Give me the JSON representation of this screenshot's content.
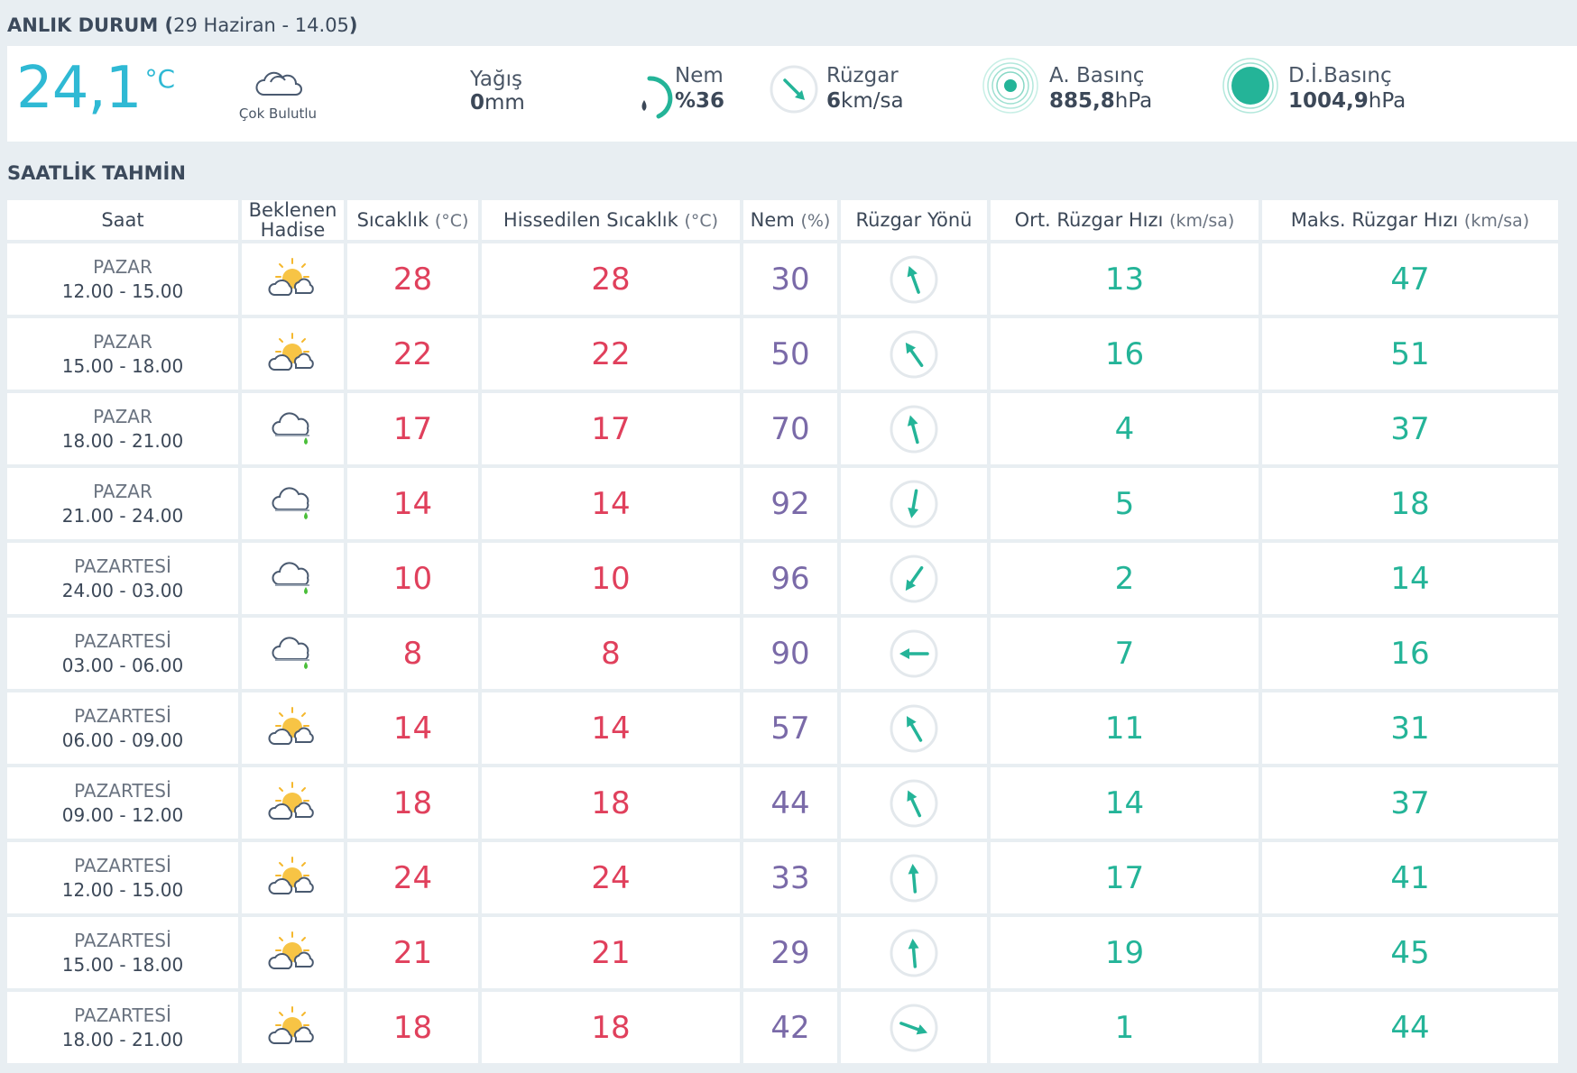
{
  "current": {
    "title_bold": "ANLIK DURUM",
    "title_open": " (",
    "title_date": "29 Haziran - 14.05",
    "title_close": ")",
    "temperature": "24,1",
    "temp_unit": "°C",
    "condition": "Çok Bulutlu",
    "condition_icon": "cloud-icon",
    "rain_label": "Yağış",
    "rain_value": "0",
    "rain_unit": "mm",
    "humidity_label": "Nem",
    "humidity_value": "%36",
    "humidity_level": 0.36,
    "wind_label": "Rüzgar",
    "wind_value": "6",
    "wind_unit": "km/sa",
    "apressure_label": "A. Basınç",
    "apressure_value": "885,8",
    "apressure_unit": "hPa",
    "dpressure_label": "D.İ.Basınç",
    "dpressure_value": "1004,9",
    "dpressure_unit": "hPa",
    "colors": {
      "accent": "#2fb9d4",
      "wind": "#24b498"
    }
  },
  "hourly": {
    "title": "SAATLİK TAHMİN",
    "headers": {
      "saat": "Saat",
      "hadise_1": "Beklenen",
      "hadise_2": "Hadise",
      "sicaklik": "Sıcaklık",
      "sicaklik_unit": "(°C)",
      "hissedilen": "Hissedilen Sıcaklık",
      "hissedilen_unit": "(°C)",
      "nem": "Nem",
      "nem_unit": "(%)",
      "ruzgar_yonu": "Rüzgar Yönü",
      "ort_ruzgar": "Ort. Rüzgar Hızı",
      "ort_ruzgar_unit": "(km/sa)",
      "maks_ruzgar": "Maks. Rüzgar Hızı",
      "maks_ruzgar_unit": "(km/sa)"
    },
    "rows": [
      {
        "day": "PAZAR",
        "time": "12.00 - 15.00",
        "icon": "partly-cloudy-icon",
        "temp": "28",
        "feels": "28",
        "hum": "30",
        "dir": 160,
        "avg": "13",
        "max": "47"
      },
      {
        "day": "PAZAR",
        "time": "15.00 - 18.00",
        "icon": "partly-cloudy-icon",
        "temp": "22",
        "feels": "22",
        "hum": "50",
        "dir": 145,
        "avg": "16",
        "max": "51"
      },
      {
        "day": "PAZAR",
        "time": "18.00 - 21.00",
        "icon": "cloud-rain-icon",
        "temp": "17",
        "feels": "17",
        "hum": "70",
        "dir": 165,
        "avg": "4",
        "max": "37"
      },
      {
        "day": "PAZAR",
        "time": "21.00 - 24.00",
        "icon": "cloud-rain-icon",
        "temp": "14",
        "feels": "14",
        "hum": "92",
        "dir": 10,
        "avg": "5",
        "max": "18"
      },
      {
        "day": "PAZARTESİ",
        "time": "24.00 - 03.00",
        "icon": "cloud-rain-icon",
        "temp": "10",
        "feels": "10",
        "hum": "96",
        "dir": 35,
        "avg": "2",
        "max": "14"
      },
      {
        "day": "PAZARTESİ",
        "time": "03.00 - 06.00",
        "icon": "cloud-rain-icon",
        "temp": "8",
        "feels": "8",
        "hum": "90",
        "dir": 90,
        "avg": "7",
        "max": "16"
      },
      {
        "day": "PAZARTESİ",
        "time": "06.00 - 09.00",
        "icon": "partly-cloudy-icon",
        "temp": "14",
        "feels": "14",
        "hum": "57",
        "dir": 150,
        "avg": "11",
        "max": "31"
      },
      {
        "day": "PAZARTESİ",
        "time": "09.00 - 12.00",
        "icon": "partly-cloudy-icon",
        "temp": "18",
        "feels": "18",
        "hum": "44",
        "dir": 155,
        "avg": "14",
        "max": "37"
      },
      {
        "day": "PAZARTESİ",
        "time": "12.00 - 15.00",
        "icon": "partly-cloudy-icon",
        "temp": "24",
        "feels": "24",
        "hum": "33",
        "dir": 175,
        "avg": "17",
        "max": "41"
      },
      {
        "day": "PAZARTESİ",
        "time": "15.00 - 18.00",
        "icon": "partly-cloudy-icon",
        "temp": "21",
        "feels": "21",
        "hum": "29",
        "dir": 175,
        "avg": "19",
        "max": "45"
      },
      {
        "day": "PAZARTESİ",
        "time": "18.00 - 21.00",
        "icon": "partly-cloudy-icon",
        "temp": "18",
        "feels": "18",
        "hum": "42",
        "dir": 290,
        "avg": "1",
        "max": "44"
      }
    ],
    "colors": {
      "temp": "#e0405c",
      "humidity": "#7a6aa8",
      "wind": "#24b498"
    }
  }
}
